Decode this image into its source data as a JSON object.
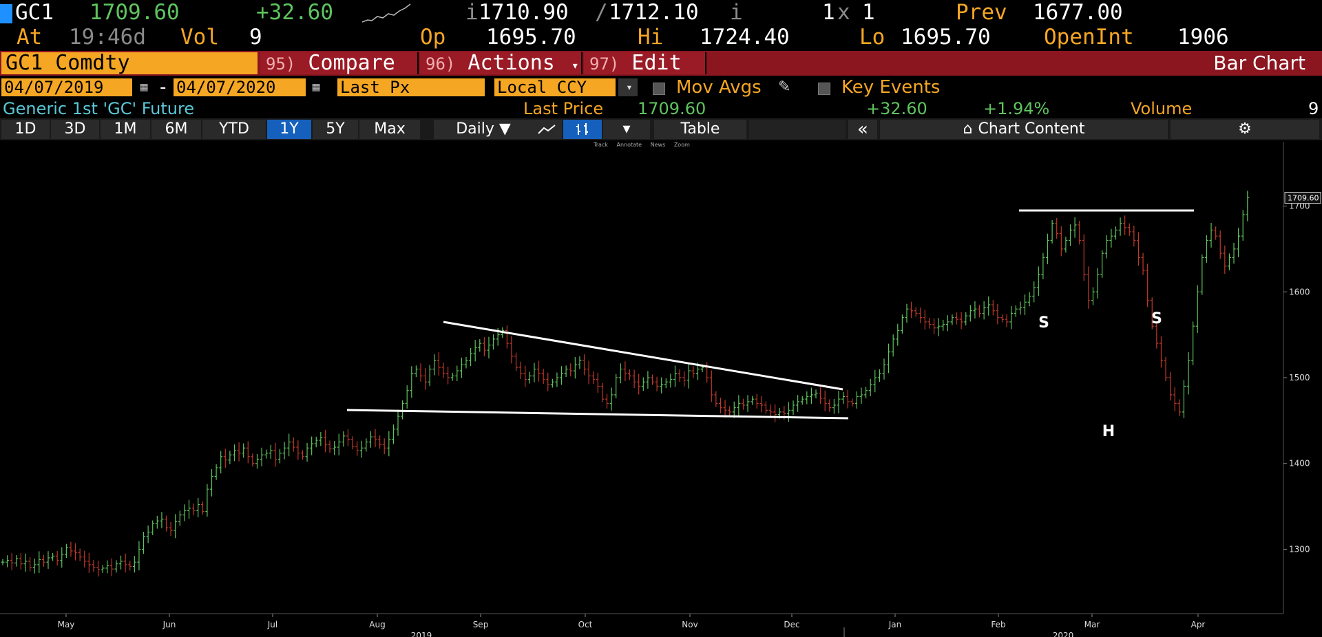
{
  "header": {
    "ticker": "GC1",
    "last": "1709.60",
    "change": "+32.60",
    "bid_ask_prefix": "i",
    "bid": "1710.90",
    "sep": "/",
    "ask": "1712.10",
    "bid_ask_suffix": "i",
    "size": "1",
    "size_x": "x",
    "size2": "1",
    "prev_label": "Prev",
    "prev": "1677.00",
    "at_label": "At",
    "time": "19:46d",
    "vol_label": "Vol",
    "vol": "9",
    "op_label": "Op",
    "op": "1695.70",
    "hi_label": "Hi",
    "hi": "1724.40",
    "lo_label": "Lo",
    "lo": "1695.70",
    "oi_label": "OpenInt",
    "oi": "1906"
  },
  "toolbar": {
    "security": "GC1 Comdty",
    "compare_num": "95)",
    "compare": "Compare",
    "actions_num": "96)",
    "actions": "Actions",
    "edit_num": "97)",
    "edit": "Edit",
    "view": "Bar Chart",
    "dropdown_glyph": "▾"
  },
  "controls": {
    "start_date": "04/07/2019",
    "dash": "-",
    "end_date": "04/07/2020",
    "field": "Last Px",
    "currency": "Local CCY",
    "mov_avgs": "Mov Avgs",
    "key_events": "Key Events"
  },
  "info": {
    "name": "Generic 1st 'GC' Future",
    "last_label": "Last Price",
    "last_value": "1709.60",
    "change": "+32.60",
    "pct": "+1.94%",
    "volume_label": "Volume",
    "volume_value": "9"
  },
  "periods": [
    {
      "label": "1D"
    },
    {
      "label": "3D"
    },
    {
      "label": "1M"
    },
    {
      "label": "6M"
    },
    {
      "label": "YTD"
    },
    {
      "label": "1Y",
      "active": true
    },
    {
      "label": "5Y"
    },
    {
      "label": "Max"
    }
  ],
  "frequency": "Daily ▼",
  "table_label": "Table",
  "collapse_glyph": "«",
  "chart_content_label": "Chart Content",
  "tools": [
    "Track",
    "Annotate",
    "News",
    "Zoom"
  ],
  "colors": {
    "up": "#5ec45e",
    "down": "#c0392b",
    "accent": "#f5a623",
    "toolbar_red": "#8b1620",
    "active_tab": "#1560bd"
  },
  "chart_data": {
    "type": "bar",
    "subtype": "ohlc",
    "x_range": [
      "2019-04-07",
      "2020-04-07"
    ],
    "x_ticks": [
      "May",
      "Jun",
      "Jul",
      "Aug",
      "Sep",
      "Oct",
      "Nov",
      "Dec",
      "Jan",
      "Feb",
      "Mar",
      "Apr"
    ],
    "year_labels": [
      "2019",
      "2020"
    ],
    "y_ticks": [
      1300,
      1400,
      1500,
      1600,
      1700
    ],
    "ylim": [
      1225,
      1775
    ],
    "last_price_marker": "1709.60",
    "annotations": [
      "S",
      "H",
      "S"
    ],
    "series": [
      {
        "name": "",
        "values": [
          1285,
          1287,
          1284,
          1289,
          1283,
          1286,
          1279,
          1282,
          1288,
          1285,
          1290,
          1292,
          1287,
          1294,
          1302,
          1298,
          1296,
          1291,
          1286,
          1282,
          1279,
          1276,
          1278,
          1281,
          1277,
          1283,
          1286,
          1282,
          1280,
          1285,
          1300,
          1315,
          1320,
          1330,
          1333,
          1335,
          1325,
          1322,
          1332,
          1340,
          1345,
          1348,
          1345,
          1352,
          1344,
          1370,
          1385,
          1395,
          1408,
          1404,
          1410,
          1415,
          1412,
          1418,
          1408,
          1400,
          1405,
          1410,
          1412,
          1415,
          1405,
          1412,
          1418,
          1425,
          1419,
          1412,
          1408,
          1418,
          1423,
          1427,
          1430,
          1422,
          1417,
          1419,
          1425,
          1432,
          1428,
          1420,
          1415,
          1418,
          1425,
          1431,
          1428,
          1422,
          1418,
          1428,
          1440,
          1455,
          1470,
          1485,
          1505,
          1510,
          1502,
          1495,
          1510,
          1520,
          1512,
          1505,
          1500,
          1502,
          1508,
          1515,
          1520,
          1528,
          1535,
          1540,
          1532,
          1538,
          1545,
          1550,
          1555,
          1540,
          1525,
          1512,
          1505,
          1498,
          1502,
          1510,
          1505,
          1498,
          1492,
          1495,
          1500,
          1505,
          1510,
          1508,
          1515,
          1520,
          1510,
          1502,
          1498,
          1490,
          1475,
          1470,
          1480,
          1500,
          1510,
          1505,
          1502,
          1495,
          1490,
          1495,
          1500,
          1495,
          1490,
          1492,
          1495,
          1498,
          1505,
          1500,
          1497,
          1508,
          1505,
          1510,
          1512,
          1500,
          1480,
          1470,
          1465,
          1462,
          1460,
          1465,
          1470,
          1468,
          1472,
          1475,
          1470,
          1468,
          1462,
          1460,
          1457,
          1460,
          1458,
          1462,
          1468,
          1472,
          1475,
          1478,
          1480,
          1482,
          1476,
          1470,
          1465,
          1468,
          1475,
          1478,
          1472,
          1470,
          1478,
          1480,
          1485,
          1492,
          1500,
          1505,
          1515,
          1530,
          1545,
          1555,
          1570,
          1580,
          1578,
          1575,
          1570,
          1565,
          1562,
          1558,
          1560,
          1562,
          1565,
          1570,
          1568,
          1565,
          1572,
          1578,
          1580,
          1575,
          1582,
          1585,
          1578,
          1570,
          1568,
          1565,
          1575,
          1580,
          1582,
          1588,
          1595,
          1605,
          1620,
          1640,
          1660,
          1680,
          1668,
          1650,
          1660,
          1672,
          1678,
          1660,
          1620,
          1590,
          1600,
          1620,
          1645,
          1660,
          1665,
          1672,
          1680,
          1675,
          1670,
          1660,
          1640,
          1625,
          1590,
          1560,
          1540,
          1520,
          1500,
          1480,
          1470,
          1460,
          1490,
          1520,
          1560,
          1600,
          1640,
          1660,
          1672,
          1665,
          1645,
          1630,
          1640,
          1650,
          1665,
          1690,
          1710
        ]
      }
    ]
  }
}
